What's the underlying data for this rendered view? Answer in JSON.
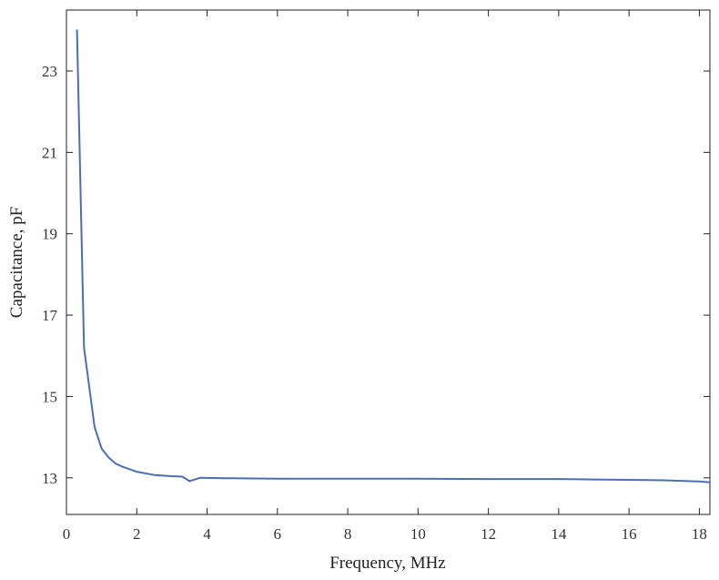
{
  "chart_data": {
    "type": "line",
    "title": "",
    "xlabel": "Frequency, MHz",
    "ylabel": "Capacitance, pF",
    "xlim": [
      0,
      18.3
    ],
    "ylim": [
      12.1,
      24.5
    ],
    "xticks": [
      0,
      2,
      4,
      6,
      8,
      10,
      12,
      14,
      16,
      18
    ],
    "xtick_labels": [
      "0",
      "2",
      "4",
      "6",
      "8",
      "10",
      "12",
      "14",
      "16",
      "18"
    ],
    "yticks": [
      13,
      15,
      17,
      19,
      21,
      23
    ],
    "ytick_labels": [
      "13",
      "15",
      "17",
      "19",
      "21",
      "23"
    ],
    "grid": false,
    "legend": "none",
    "ticks_mirrored": true,
    "series": [
      {
        "color": "#4a6fb3",
        "x": [
          0.3,
          0.5,
          0.8,
          1.0,
          1.2,
          1.4,
          1.6,
          2.0,
          2.5,
          3.0,
          3.3,
          3.5,
          3.8,
          4.5,
          6,
          8,
          10,
          12,
          14,
          15,
          16,
          17,
          18,
          18.3
        ],
        "y": [
          24.0,
          16.2,
          14.25,
          13.72,
          13.5,
          13.35,
          13.27,
          13.15,
          13.07,
          13.04,
          13.03,
          12.92,
          13.0,
          12.99,
          12.98,
          12.98,
          12.98,
          12.97,
          12.97,
          12.96,
          12.95,
          12.94,
          12.91,
          12.89
        ]
      }
    ]
  }
}
